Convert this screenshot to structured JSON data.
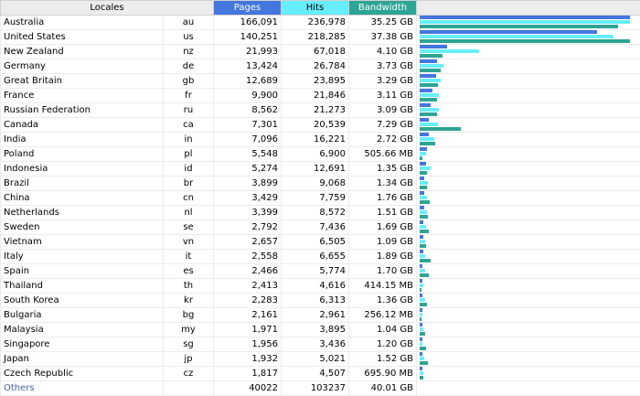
{
  "headers": {
    "locales": "Locales",
    "pages": "Pages",
    "hits": "Hits",
    "bandwidth": "Bandwidth"
  },
  "colors": {
    "pages": "#4477dd",
    "hits": "#66eeff",
    "bandwidth": "#2ea495"
  },
  "rows": [
    {
      "name": "Australia",
      "code": "au",
      "pages": "166,091",
      "hits": "236,978",
      "bandwidth": "35.25 GB",
      "pages_n": 166091,
      "hits_n": 236978,
      "bw_gb": 35.25
    },
    {
      "name": "United States",
      "code": "us",
      "pages": "140,251",
      "hits": "218,285",
      "bandwidth": "37.38 GB",
      "pages_n": 140251,
      "hits_n": 218285,
      "bw_gb": 37.38
    },
    {
      "name": "New Zealand",
      "code": "nz",
      "pages": "21,993",
      "hits": "67,018",
      "bandwidth": "4.10 GB",
      "pages_n": 21993,
      "hits_n": 67018,
      "bw_gb": 4.1
    },
    {
      "name": "Germany",
      "code": "de",
      "pages": "13,424",
      "hits": "26,784",
      "bandwidth": "3.73 GB",
      "pages_n": 13424,
      "hits_n": 26784,
      "bw_gb": 3.73
    },
    {
      "name": "Great Britain",
      "code": "gb",
      "pages": "12,689",
      "hits": "23,895",
      "bandwidth": "3.29 GB",
      "pages_n": 12689,
      "hits_n": 23895,
      "bw_gb": 3.29
    },
    {
      "name": "France",
      "code": "fr",
      "pages": "9,900",
      "hits": "21,846",
      "bandwidth": "3.11 GB",
      "pages_n": 9900,
      "hits_n": 21846,
      "bw_gb": 3.11
    },
    {
      "name": "Russian Federation",
      "code": "ru",
      "pages": "8,562",
      "hits": "21,273",
      "bandwidth": "3.09 GB",
      "pages_n": 8562,
      "hits_n": 21273,
      "bw_gb": 3.09
    },
    {
      "name": "Canada",
      "code": "ca",
      "pages": "7,301",
      "hits": "20,539",
      "bandwidth": "7.29 GB",
      "pages_n": 7301,
      "hits_n": 20539,
      "bw_gb": 7.29
    },
    {
      "name": "India",
      "code": "in",
      "pages": "7,096",
      "hits": "16,221",
      "bandwidth": "2.72 GB",
      "pages_n": 7096,
      "hits_n": 16221,
      "bw_gb": 2.72
    },
    {
      "name": "Poland",
      "code": "pl",
      "pages": "5,548",
      "hits": "6,900",
      "bandwidth": "505.66 MB",
      "pages_n": 5548,
      "hits_n": 6900,
      "bw_gb": 0.494
    },
    {
      "name": "Indonesia",
      "code": "id",
      "pages": "5,274",
      "hits": "12,691",
      "bandwidth": "1.35 GB",
      "pages_n": 5274,
      "hits_n": 12691,
      "bw_gb": 1.35
    },
    {
      "name": "Brazil",
      "code": "br",
      "pages": "3,899",
      "hits": "9,068",
      "bandwidth": "1.34 GB",
      "pages_n": 3899,
      "hits_n": 9068,
      "bw_gb": 1.34
    },
    {
      "name": "China",
      "code": "cn",
      "pages": "3,429",
      "hits": "7,759",
      "bandwidth": "1.76 GB",
      "pages_n": 3429,
      "hits_n": 7759,
      "bw_gb": 1.76
    },
    {
      "name": "Netherlands",
      "code": "nl",
      "pages": "3,399",
      "hits": "8,572",
      "bandwidth": "1.51 GB",
      "pages_n": 3399,
      "hits_n": 8572,
      "bw_gb": 1.51
    },
    {
      "name": "Sweden",
      "code": "se",
      "pages": "2,792",
      "hits": "7,436",
      "bandwidth": "1.69 GB",
      "pages_n": 2792,
      "hits_n": 7436,
      "bw_gb": 1.69
    },
    {
      "name": "Vietnam",
      "code": "vn",
      "pages": "2,657",
      "hits": "6,505",
      "bandwidth": "1.09 GB",
      "pages_n": 2657,
      "hits_n": 6505,
      "bw_gb": 1.09
    },
    {
      "name": "Italy",
      "code": "it",
      "pages": "2,558",
      "hits": "6,655",
      "bandwidth": "1.89 GB",
      "pages_n": 2558,
      "hits_n": 6655,
      "bw_gb": 1.89
    },
    {
      "name": "Spain",
      "code": "es",
      "pages": "2,466",
      "hits": "5,774",
      "bandwidth": "1.70 GB",
      "pages_n": 2466,
      "hits_n": 5774,
      "bw_gb": 1.7
    },
    {
      "name": "Thailand",
      "code": "th",
      "pages": "2,413",
      "hits": "4,616",
      "bandwidth": "414.15 MB",
      "pages_n": 2413,
      "hits_n": 4616,
      "bw_gb": 0.404
    },
    {
      "name": "South Korea",
      "code": "kr",
      "pages": "2,283",
      "hits": "6,313",
      "bandwidth": "1.36 GB",
      "pages_n": 2283,
      "hits_n": 6313,
      "bw_gb": 1.36
    },
    {
      "name": "Bulgaria",
      "code": "bg",
      "pages": "2,161",
      "hits": "2,961",
      "bandwidth": "256.12 MB",
      "pages_n": 2161,
      "hits_n": 2961,
      "bw_gb": 0.25
    },
    {
      "name": "Malaysia",
      "code": "my",
      "pages": "1,971",
      "hits": "3,895",
      "bandwidth": "1.04 GB",
      "pages_n": 1971,
      "hits_n": 3895,
      "bw_gb": 1.04
    },
    {
      "name": "Singapore",
      "code": "sg",
      "pages": "1,956",
      "hits": "3,436",
      "bandwidth": "1.20 GB",
      "pages_n": 1956,
      "hits_n": 3436,
      "bw_gb": 1.2
    },
    {
      "name": "Japan",
      "code": "jp",
      "pages": "1,932",
      "hits": "5,021",
      "bandwidth": "1.52 GB",
      "pages_n": 1932,
      "hits_n": 5021,
      "bw_gb": 1.52
    },
    {
      "name": "Czech Republic",
      "code": "cz",
      "pages": "1,817",
      "hits": "4,507",
      "bandwidth": "695.90 MB",
      "pages_n": 1817,
      "hits_n": 4507,
      "bw_gb": 0.68
    }
  ],
  "others": {
    "name": "Others",
    "pages": "40022",
    "hits": "103237",
    "bandwidth": "40.01 GB"
  }
}
